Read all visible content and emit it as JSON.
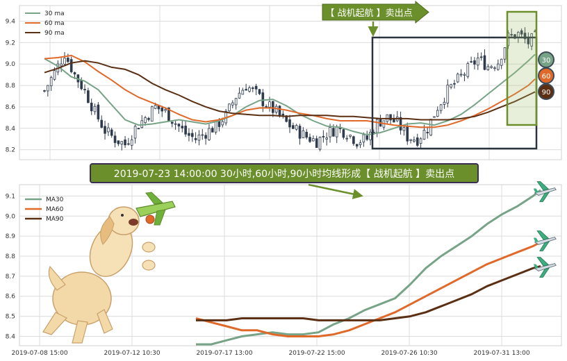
{
  "colors": {
    "ma30": "#77a387",
    "ma60": "#e0692a",
    "ma90": "#5a2f14",
    "candle": "#2e3a4d",
    "annotation_bg": "#6b8f2a",
    "grid": "#dcdcdc"
  },
  "icons": [
    "airplane-icon",
    "dog-illustration"
  ],
  "chart_data": [
    {
      "type": "candlestick",
      "legend": [
        "30 ma",
        "60 ma",
        "90 ma"
      ],
      "legend_position": "top-left",
      "ylim": [
        8.12,
        9.52
      ],
      "yticks": [
        8.2,
        8.4,
        8.6,
        8.8,
        9.0,
        9.2,
        9.4
      ],
      "grid": true,
      "price_key": [
        [
          0,
          8.75
        ],
        [
          3,
          8.92
        ],
        [
          6,
          9.1
        ],
        [
          9,
          8.9
        ],
        [
          12,
          8.75
        ],
        [
          15,
          8.55
        ],
        [
          18,
          8.38
        ],
        [
          21,
          8.3
        ],
        [
          24,
          8.25
        ],
        [
          27,
          8.4
        ],
        [
          30,
          8.5
        ],
        [
          33,
          8.6
        ],
        [
          36,
          8.55
        ],
        [
          39,
          8.45
        ],
        [
          42,
          8.35
        ],
        [
          45,
          8.3
        ],
        [
          48,
          8.36
        ],
        [
          51,
          8.42
        ],
        [
          54,
          8.52
        ],
        [
          57,
          8.7
        ],
        [
          60,
          8.8
        ],
        [
          63,
          8.72
        ],
        [
          66,
          8.62
        ],
        [
          69,
          8.55
        ],
        [
          72,
          8.45
        ],
        [
          75,
          8.38
        ],
        [
          78,
          8.32
        ],
        [
          81,
          8.28
        ],
        [
          84,
          8.35
        ],
        [
          87,
          8.4
        ],
        [
          90,
          8.36
        ],
        [
          93,
          8.28
        ],
        [
          96,
          8.3
        ],
        [
          99,
          8.45
        ],
        [
          102,
          8.5
        ],
        [
          105,
          8.45
        ],
        [
          108,
          8.32
        ],
        [
          111,
          8.3
        ],
        [
          114,
          8.4
        ],
        [
          117,
          8.6
        ],
        [
          120,
          8.75
        ],
        [
          123,
          8.85
        ],
        [
          126,
          8.95
        ],
        [
          129,
          9.05
        ],
        [
          132,
          8.98
        ],
        [
          135,
          9.02
        ],
        [
          138,
          9.25
        ],
        [
          141,
          9.28
        ],
        [
          144,
          9.2
        ],
        [
          146,
          9.25
        ]
      ],
      "ma_series": [
        {
          "name": "30 ma",
          "points": [
            [
              0,
              9.05
            ],
            [
              4,
              8.98
            ],
            [
              8,
              8.88
            ],
            [
              12,
              8.84
            ],
            [
              16,
              8.76
            ],
            [
              20,
              8.62
            ],
            [
              24,
              8.48
            ],
            [
              28,
              8.43
            ],
            [
              32,
              8.44
            ],
            [
              36,
              8.46
            ],
            [
              40,
              8.48
            ],
            [
              44,
              8.46
            ],
            [
              48,
              8.44
            ],
            [
              52,
              8.47
            ],
            [
              56,
              8.52
            ],
            [
              60,
              8.6
            ],
            [
              64,
              8.66
            ],
            [
              68,
              8.67
            ],
            [
              72,
              8.61
            ],
            [
              76,
              8.53
            ],
            [
              80,
              8.47
            ],
            [
              84,
              8.42
            ],
            [
              88,
              8.41
            ],
            [
              92,
              8.37
            ],
            [
              96,
              8.34
            ],
            [
              100,
              8.36
            ],
            [
              104,
              8.4
            ],
            [
              108,
              8.44
            ],
            [
              112,
              8.45
            ],
            [
              116,
              8.43
            ],
            [
              120,
              8.47
            ],
            [
              124,
              8.53
            ],
            [
              128,
              8.62
            ],
            [
              132,
              8.72
            ],
            [
              136,
              8.82
            ],
            [
              140,
              8.92
            ],
            [
              144,
              9.03
            ],
            [
              146,
              9.09
            ]
          ]
        },
        {
          "name": "60 ma",
          "points": [
            [
              0,
              9.05
            ],
            [
              4,
              9.06
            ],
            [
              8,
              9.08
            ],
            [
              12,
              9.02
            ],
            [
              16,
              8.93
            ],
            [
              20,
              8.85
            ],
            [
              24,
              8.76
            ],
            [
              28,
              8.69
            ],
            [
              32,
              8.64
            ],
            [
              36,
              8.59
            ],
            [
              40,
              8.53
            ],
            [
              44,
              8.48
            ],
            [
              48,
              8.46
            ],
            [
              52,
              8.48
            ],
            [
              56,
              8.52
            ],
            [
              60,
              8.57
            ],
            [
              64,
              8.59
            ],
            [
              68,
              8.59
            ],
            [
              72,
              8.57
            ],
            [
              76,
              8.54
            ],
            [
              80,
              8.52
            ],
            [
              84,
              8.49
            ],
            [
              88,
              8.47
            ],
            [
              92,
              8.47
            ],
            [
              96,
              8.47
            ],
            [
              100,
              8.45
            ],
            [
              104,
              8.43
            ],
            [
              108,
              8.42
            ],
            [
              112,
              8.41
            ],
            [
              116,
              8.41
            ],
            [
              120,
              8.43
            ],
            [
              124,
              8.47
            ],
            [
              128,
              8.52
            ],
            [
              132,
              8.58
            ],
            [
              136,
              8.65
            ],
            [
              140,
              8.72
            ],
            [
              144,
              8.8
            ],
            [
              146,
              8.86
            ]
          ]
        },
        {
          "name": "90 ma",
          "points": [
            [
              0,
              8.92
            ],
            [
              4,
              8.96
            ],
            [
              8,
              9.01
            ],
            [
              12,
              9.03
            ],
            [
              16,
              9.01
            ],
            [
              20,
              8.97
            ],
            [
              24,
              8.95
            ],
            [
              28,
              8.9
            ],
            [
              32,
              8.82
            ],
            [
              36,
              8.76
            ],
            [
              40,
              8.71
            ],
            [
              44,
              8.65
            ],
            [
              48,
              8.6
            ],
            [
              52,
              8.56
            ],
            [
              56,
              8.54
            ],
            [
              60,
              8.53
            ],
            [
              64,
              8.52
            ],
            [
              68,
              8.52
            ],
            [
              72,
              8.51
            ],
            [
              76,
              8.52
            ],
            [
              80,
              8.52
            ],
            [
              84,
              8.52
            ],
            [
              88,
              8.51
            ],
            [
              92,
              8.51
            ],
            [
              96,
              8.5
            ],
            [
              100,
              8.49
            ],
            [
              104,
              8.49
            ],
            [
              108,
              8.49
            ],
            [
              112,
              8.48
            ],
            [
              116,
              8.48
            ],
            [
              120,
              8.48
            ],
            [
              124,
              8.49
            ],
            [
              128,
              8.51
            ],
            [
              132,
              8.55
            ],
            [
              136,
              8.6
            ],
            [
              140,
              8.65
            ],
            [
              144,
              8.71
            ],
            [
              146,
              8.74
            ]
          ]
        }
      ],
      "end_badges": [
        "30",
        "60",
        "90"
      ],
      "annotation": "【 战机起航 】卖出点"
    },
    {
      "type": "line",
      "legend": [
        "MA30",
        "MA60",
        "MA90"
      ],
      "legend_position": "top-left",
      "title": "2019-07-23 14:00:00 30小时,60小时,90小时均线形成【 战机起航 】卖出点",
      "x_ticks": [
        "2019-07-08 15:00",
        "2019-07-12 10:30",
        "2019-07-17 13:00",
        "2019-07-22 15:00",
        "2019-07-26 10:30",
        "2019-07-31 13:00"
      ],
      "ylim": [
        8.36,
        9.15
      ],
      "yticks": [
        8.4,
        8.5,
        8.6,
        8.7,
        8.8,
        8.9,
        9.0,
        9.1
      ],
      "grid": true,
      "series": [
        {
          "name": "MA30",
          "points": [
            [
              0,
              8.36
            ],
            [
              4,
              8.36
            ],
            [
              8,
              8.38
            ],
            [
              12,
              8.4
            ],
            [
              16,
              8.41
            ],
            [
              20,
              8.42
            ],
            [
              24,
              8.41
            ],
            [
              28,
              8.41
            ],
            [
              32,
              8.42
            ],
            [
              36,
              8.46
            ],
            [
              40,
              8.49
            ],
            [
              44,
              8.53
            ],
            [
              48,
              8.56
            ],
            [
              52,
              8.59
            ],
            [
              56,
              8.66
            ],
            [
              60,
              8.74
            ],
            [
              64,
              8.8
            ],
            [
              68,
              8.85
            ],
            [
              72,
              8.9
            ],
            [
              76,
              8.96
            ],
            [
              80,
              9.01
            ],
            [
              84,
              9.05
            ],
            [
              88,
              9.1
            ],
            [
              90,
              9.13
            ]
          ]
        },
        {
          "name": "MA60",
          "points": [
            [
              0,
              8.49
            ],
            [
              4,
              8.47
            ],
            [
              8,
              8.45
            ],
            [
              12,
              8.43
            ],
            [
              16,
              8.43
            ],
            [
              20,
              8.41
            ],
            [
              24,
              8.4
            ],
            [
              28,
              8.4
            ],
            [
              32,
              8.4
            ],
            [
              36,
              8.41
            ],
            [
              40,
              8.43
            ],
            [
              44,
              8.46
            ],
            [
              48,
              8.49
            ],
            [
              52,
              8.52
            ],
            [
              56,
              8.56
            ],
            [
              60,
              8.6
            ],
            [
              64,
              8.64
            ],
            [
              68,
              8.68
            ],
            [
              72,
              8.72
            ],
            [
              76,
              8.76
            ],
            [
              80,
              8.79
            ],
            [
              84,
              8.82
            ],
            [
              88,
              8.85
            ],
            [
              90,
              8.87
            ]
          ]
        },
        {
          "name": "MA90",
          "points": [
            [
              0,
              8.48
            ],
            [
              4,
              8.48
            ],
            [
              8,
              8.48
            ],
            [
              12,
              8.49
            ],
            [
              16,
              8.49
            ],
            [
              20,
              8.49
            ],
            [
              24,
              8.49
            ],
            [
              28,
              8.49
            ],
            [
              32,
              8.48
            ],
            [
              36,
              8.48
            ],
            [
              40,
              8.48
            ],
            [
              44,
              8.48
            ],
            [
              48,
              8.48
            ],
            [
              52,
              8.49
            ],
            [
              56,
              8.5
            ],
            [
              60,
              8.52
            ],
            [
              64,
              8.55
            ],
            [
              68,
              8.58
            ],
            [
              72,
              8.61
            ],
            [
              76,
              8.65
            ],
            [
              80,
              8.68
            ],
            [
              84,
              8.71
            ],
            [
              88,
              8.74
            ],
            [
              90,
              8.75
            ]
          ]
        }
      ]
    }
  ]
}
